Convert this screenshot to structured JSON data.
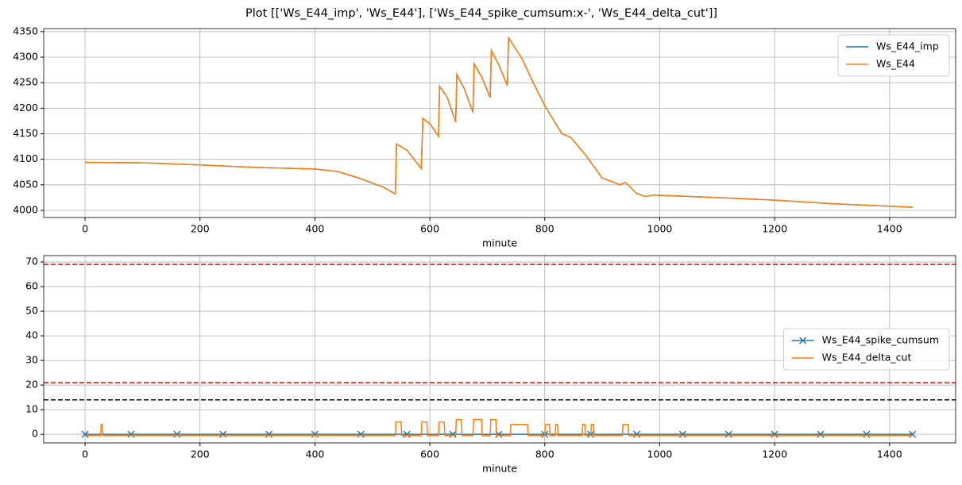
{
  "title": "Plot [['Ws_E44_imp', 'Ws_E44'], ['Ws_E44_spike_cumsum:x-', 'Ws_E44_delta_cut']]",
  "chart_data": [
    {
      "type": "line",
      "xlabel": "minute",
      "grid": true,
      "legend": "upper right",
      "xlim": [
        -72,
        1515
      ],
      "xticks": [
        0,
        200,
        400,
        600,
        800,
        1000,
        1200,
        1400
      ],
      "ylim": [
        3986,
        4356
      ],
      "yticks": [
        4000,
        4050,
        4100,
        4150,
        4200,
        4250,
        4300,
        4350
      ],
      "x": [
        0,
        100,
        200,
        300,
        400,
        440,
        480,
        520,
        540,
        542,
        560,
        585,
        588,
        600,
        615,
        617,
        630,
        645,
        647,
        660,
        675,
        677,
        690,
        705,
        707,
        720,
        735,
        737,
        760,
        780,
        800,
        820,
        830,
        845,
        870,
        900,
        920,
        930,
        940,
        960,
        975,
        990,
        1100,
        1200,
        1300,
        1440
      ],
      "series": [
        {
          "name": "Ws_E44_imp",
          "color": "#1f77b4",
          "values": [
            4094,
            4093,
            4089,
            4084,
            4081,
            4076,
            4062,
            4045,
            4032,
            4130,
            4118,
            4082,
            4180,
            4170,
            4145,
            4243,
            4222,
            4173,
            4266,
            4238,
            4192,
            4287,
            4262,
            4221,
            4313,
            4285,
            4244,
            4338,
            4298,
            4250,
            4205,
            4168,
            4150,
            4143,
            4110,
            4063,
            4055,
            4050,
            4055,
            4033,
            4027,
            4030,
            4025,
            4020,
            4013,
            4006
          ]
        },
        {
          "name": "Ws_E44",
          "color": "#ff7f0e",
          "values": [
            4094,
            4093,
            4089,
            4084,
            4081,
            4076,
            4062,
            4045,
            4032,
            4130,
            4118,
            4082,
            4180,
            4170,
            4145,
            4243,
            4222,
            4173,
            4266,
            4238,
            4192,
            4287,
            4262,
            4221,
            4313,
            4285,
            4244,
            4338,
            4298,
            4250,
            4205,
            4168,
            4150,
            4143,
            4110,
            4063,
            4055,
            4050,
            4055,
            4033,
            4027,
            4030,
            4025,
            4020,
            4013,
            4006
          ]
        }
      ]
    },
    {
      "type": "line",
      "xlabel": "minute",
      "grid": true,
      "legend": "center right",
      "xlim": [
        -72,
        1515
      ],
      "xticks": [
        0,
        200,
        400,
        600,
        800,
        1000,
        1200,
        1400
      ],
      "ylim": [
        -3.5,
        72.6
      ],
      "yticks": [
        0,
        10,
        20,
        30,
        40,
        50,
        60,
        70
      ],
      "hlines": [
        {
          "value": 69,
          "color": "#ff0000"
        },
        {
          "value": 21,
          "color": "#ff0000"
        },
        {
          "value": 14,
          "color": "#000000"
        }
      ],
      "series": [
        {
          "name": "Ws_E44_spike_cumsum",
          "color": "#1f77b4",
          "marker": "x",
          "x": [
            0,
            80,
            160,
            240,
            320,
            400,
            480,
            560,
            640,
            720,
            800,
            880,
            960,
            1040,
            1120,
            1200,
            1280,
            1360,
            1440
          ],
          "values": [
            0,
            0,
            0,
            0,
            0,
            0,
            0,
            0,
            0,
            0,
            0,
            0,
            0,
            0,
            0,
            0,
            0,
            0,
            0
          ]
        },
        {
          "name": "Ws_E44_delta_cut",
          "color": "#ff7f0e",
          "x": [
            0,
            27,
            28,
            30,
            31,
            540,
            541,
            550,
            551,
            585,
            586,
            595,
            596,
            615,
            616,
            625,
            626,
            645,
            646,
            655,
            656,
            675,
            676,
            690,
            691,
            705,
            706,
            715,
            716,
            740,
            741,
            770,
            771,
            800,
            801,
            808,
            809,
            818,
            819,
            822,
            823,
            865,
            866,
            870,
            871,
            880,
            881,
            885,
            886,
            935,
            936,
            945,
            946,
            1440
          ],
          "values": [
            -0.5,
            -0.5,
            4,
            4,
            -0.5,
            -0.5,
            5,
            5,
            -0.5,
            -0.5,
            5,
            5,
            -0.5,
            -0.5,
            5,
            5,
            -0.5,
            -0.5,
            6,
            6,
            -0.5,
            -0.5,
            6,
            6,
            -0.5,
            -0.5,
            6,
            6,
            -0.5,
            -0.5,
            4,
            4,
            -0.5,
            -0.5,
            4,
            4,
            -0.5,
            -0.5,
            4,
            4,
            -0.5,
            -0.5,
            4,
            4,
            -0.5,
            -0.5,
            4,
            4,
            -0.5,
            -0.5,
            4,
            4,
            -0.5,
            -0.5
          ]
        }
      ]
    }
  ]
}
